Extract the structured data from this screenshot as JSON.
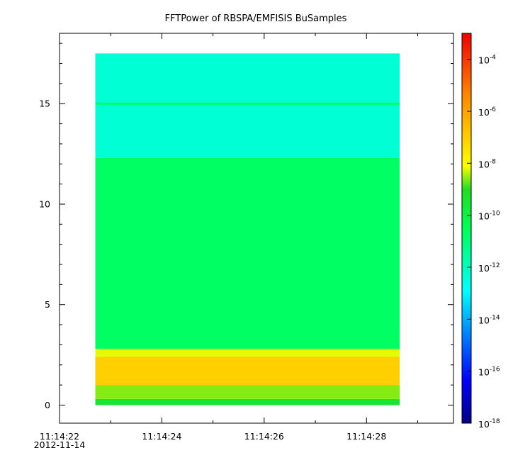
{
  "chart_data": {
    "type": "heatmap",
    "title": "FFTPower of RBSPA/EMFISIS  BuSamples",
    "xlabel": "",
    "ylabel": "",
    "x_axis": {
      "kind": "time",
      "range": [
        "11:14:22",
        "11:14:29.7"
      ],
      "ticks": [
        {
          "time": "11:14:22",
          "label": "11:14:22",
          "sublabel": "2012-11-14"
        },
        {
          "time": "11:14:24",
          "label": "11:14:24"
        },
        {
          "time": "11:14:26",
          "label": "11:14:26"
        },
        {
          "time": "11:14:28",
          "label": "11:14:28"
        }
      ],
      "minor_ticks": [
        "11:14:23",
        "11:14:25",
        "11:14:27",
        "11:14:29"
      ]
    },
    "y_axis": {
      "range": [
        -0.9,
        18.5
      ],
      "ticks": [
        0,
        5,
        10,
        15
      ]
    },
    "data_extent": {
      "x_start": "11:14:22.7",
      "x_end": "11:14:28.65",
      "y_min": 0,
      "y_max": 17.5
    },
    "colorbar": {
      "scale": "log",
      "range": [
        1e-18,
        0.001
      ],
      "colormap": "rainbow",
      "ticks": [
        {
          "base": "10",
          "exp": "-4"
        },
        {
          "base": "10",
          "exp": "-6"
        },
        {
          "base": "10",
          "exp": "-8"
        },
        {
          "base": "10",
          "exp": "-10"
        },
        {
          "base": "10",
          "exp": "-12"
        },
        {
          "base": "10",
          "exp": "-14"
        },
        {
          "base": "10",
          "exp": "-16"
        },
        {
          "base": "10",
          "exp": "-18"
        }
      ]
    },
    "bands": [
      {
        "y_from": 12.3,
        "y_to": 17.5,
        "log_power": -12.3
      },
      {
        "y_from": 14.95,
        "y_to": 15.05,
        "log_power": -10.5
      },
      {
        "y_from": 2.8,
        "y_to": 12.3,
        "log_power": -10.7
      },
      {
        "y_from": 2.4,
        "y_to": 2.8,
        "log_power": -8.2
      },
      {
        "y_from": 1.0,
        "y_to": 2.4,
        "log_power": -7.0
      },
      {
        "y_from": 0.3,
        "y_to": 1.0,
        "log_power": -8.6
      },
      {
        "y_from": 0.0,
        "y_to": 0.3,
        "log_power": -9.3
      }
    ]
  }
}
